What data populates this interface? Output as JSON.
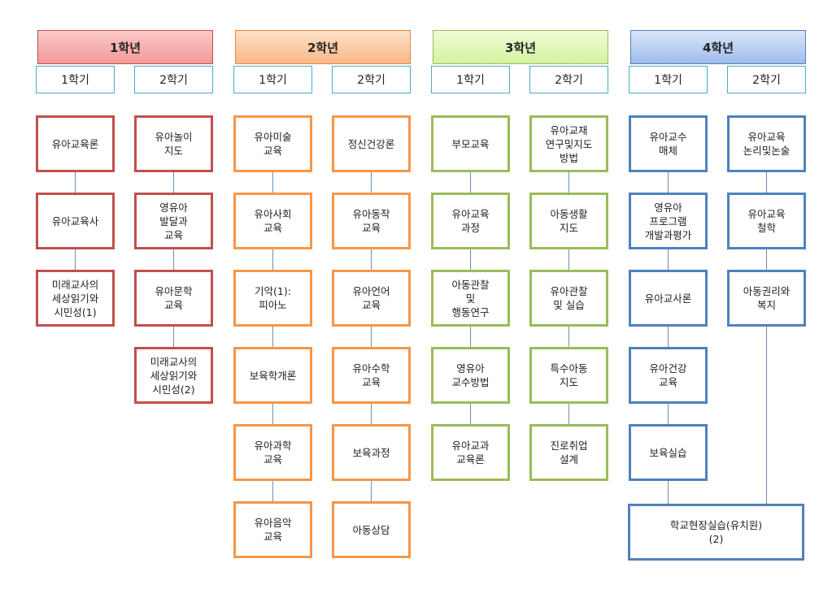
{
  "years": [
    {
      "title": "1학년",
      "semesters": [
        {
          "label": "1학기",
          "courses": [
            "유아교육론",
            "유아교육사",
            "미래교사의\n세상읽기와\n시민성(1)"
          ]
        },
        {
          "label": "2학기",
          "courses": [
            "유아놀이\n지도",
            "영유아\n발달과\n교육",
            "유아문학\n교육",
            "미래교사의\n세상읽기와\n시민성(2)"
          ]
        }
      ]
    },
    {
      "title": "2학년",
      "semesters": [
        {
          "label": "1학기",
          "courses": [
            "유아미술\n교육",
            "유아사회\n교육",
            "기악(1):\n피아노",
            "보육학개론",
            "유아과학\n교육",
            "유아음악\n교육"
          ]
        },
        {
          "label": "2학기",
          "courses": [
            "정신건강론",
            "유아동작\n교육",
            "유아언어\n교육",
            "유아수학\n교육",
            "보육과정",
            "아동상담"
          ]
        }
      ]
    },
    {
      "title": "3학년",
      "semesters": [
        {
          "label": "1학기",
          "courses": [
            "부모교육",
            "유아교육\n과정",
            "아동관찰\n및\n행동연구",
            "영유아\n교수방법",
            "유아교과\n교육론"
          ]
        },
        {
          "label": "2학기",
          "courses": [
            "유아교재\n연구및지도\n방법",
            "아동생활\n지도",
            "유아관찰\n및 실습",
            "특수아동\n지도",
            "진로취업\n설계"
          ]
        }
      ]
    },
    {
      "title": "4학년",
      "semesters": [
        {
          "label": "1학기",
          "courses": [
            "유아교수\n매체",
            "영유아\n프로그램\n개발과평가",
            "유아교사론",
            "유아건강\n교육",
            "보육실습"
          ]
        },
        {
          "label": "2학기",
          "courses": [
            "유아교육\n논리및논술",
            "유아교육\n철학",
            "아동권리와\n복지"
          ]
        }
      ]
    }
  ],
  "final": "학교현장실습(유치원)\n(2)"
}
